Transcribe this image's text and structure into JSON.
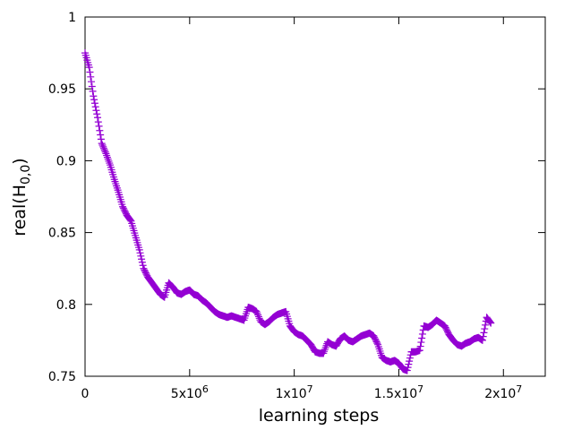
{
  "chart_data": {
    "type": "scatter",
    "xlabel": "learning steps",
    "ylabel": "real(H",
    "ylabel_sub": "0,0",
    "ylabel_close": ")",
    "xlim": [
      0,
      22000000
    ],
    "ylim": [
      0.75,
      1.0
    ],
    "grid": false,
    "legend": "none",
    "marker": "plus",
    "color": "#9400d3",
    "xticks": [
      {
        "value": 0,
        "base": "0",
        "exp": ""
      },
      {
        "value": 5000000,
        "base": "5x10",
        "exp": "6"
      },
      {
        "value": 10000000,
        "base": "1x10",
        "exp": "7"
      },
      {
        "value": 15000000,
        "base": "1.5x10",
        "exp": "7"
      },
      {
        "value": 20000000,
        "base": "2x10",
        "exp": "7"
      }
    ],
    "yticks": [
      {
        "value": 0.75,
        "label": "0.75"
      },
      {
        "value": 0.8,
        "label": "0.8"
      },
      {
        "value": 0.85,
        "label": "0.85"
      },
      {
        "value": 0.9,
        "label": "0.9"
      },
      {
        "value": 0.95,
        "label": "0.95"
      },
      {
        "value": 1.0,
        "label": "1"
      }
    ],
    "series": [
      {
        "x": [
          0,
          200000,
          400000,
          600000,
          800000,
          1000000,
          1200000,
          1400000,
          1600000,
          1800000,
          2000000,
          2200000,
          2400000,
          2600000,
          2800000,
          3000000,
          3200000,
          3400000,
          3600000,
          3800000,
          4000000,
          4200000,
          4400000,
          4600000,
          4800000,
          5000000,
          5200000,
          5400000,
          5600000,
          5800000,
          6000000,
          6200000,
          6400000,
          6600000,
          6800000,
          7000000,
          7200000,
          7400000,
          7600000,
          7800000,
          8000000,
          8200000,
          8400000,
          8600000,
          8800000,
          9000000,
          9200000,
          9400000,
          9600000,
          9800000,
          10000000,
          10200000,
          10400000,
          10600000,
          10800000,
          11000000,
          11200000,
          11400000,
          11600000,
          11800000,
          12000000,
          12200000,
          12400000,
          12600000,
          12800000,
          13000000,
          13200000,
          13400000,
          13600000,
          13800000,
          14000000,
          14200000,
          14400000,
          14600000,
          14800000,
          15000000,
          15200000,
          15400000,
          15600000,
          15800000,
          16000000,
          16200000,
          16400000,
          16600000,
          16800000,
          17000000,
          17200000,
          17400000,
          17600000,
          17800000,
          18000000,
          18200000,
          18400000,
          18600000,
          18800000,
          19000000,
          19200000,
          19400000
        ],
        "y": [
          0.975,
          0.965,
          0.945,
          0.93,
          0.912,
          0.905,
          0.897,
          0.887,
          0.878,
          0.868,
          0.862,
          0.858,
          0.848,
          0.838,
          0.825,
          0.819,
          0.815,
          0.811,
          0.807,
          0.805,
          0.815,
          0.812,
          0.808,
          0.807,
          0.809,
          0.81,
          0.807,
          0.806,
          0.803,
          0.801,
          0.798,
          0.795,
          0.793,
          0.792,
          0.791,
          0.792,
          0.791,
          0.79,
          0.789,
          0.798,
          0.797,
          0.795,
          0.788,
          0.786,
          0.788,
          0.791,
          0.793,
          0.794,
          0.795,
          0.785,
          0.781,
          0.779,
          0.778,
          0.775,
          0.772,
          0.767,
          0.766,
          0.766,
          0.774,
          0.772,
          0.771,
          0.776,
          0.778,
          0.775,
          0.774,
          0.776,
          0.778,
          0.779,
          0.78,
          0.778,
          0.772,
          0.763,
          0.761,
          0.76,
          0.761,
          0.759,
          0.755,
          0.754,
          0.767,
          0.767,
          0.768,
          0.785,
          0.784,
          0.786,
          0.789,
          0.787,
          0.785,
          0.779,
          0.775,
          0.772,
          0.771,
          0.773,
          0.774,
          0.776,
          0.777,
          0.775,
          0.791,
          0.787
        ]
      }
    ]
  }
}
